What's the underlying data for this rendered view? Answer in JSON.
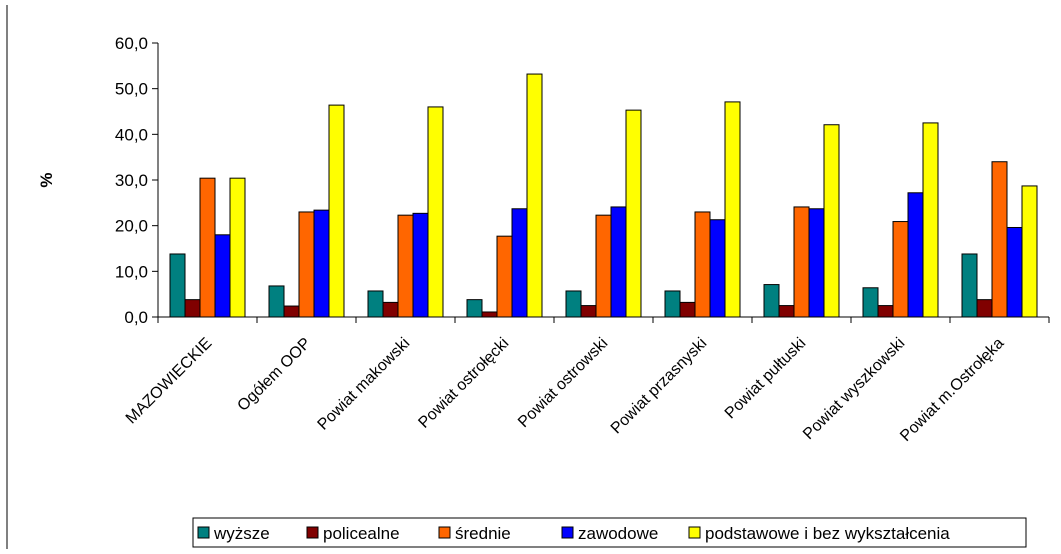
{
  "chart_data": {
    "type": "bar",
    "title": "",
    "xlabel": "",
    "ylabel": "%",
    "ylim": [
      0,
      60
    ],
    "ytick_step": 10,
    "ytick_labels": [
      "0,0",
      "10,0",
      "20,0",
      "30,0",
      "40,0",
      "50,0",
      "60,0"
    ],
    "grid": false,
    "legend_position": "bottom",
    "categories": [
      "MAZOWIECKIE",
      "Ogółem OOP",
      "Powiat makowski",
      "Powiat ostrołęcki",
      "Powiat ostrowski",
      "Powiat przasnyski",
      "Powiat pułtuski",
      "Powiat wyszkowski",
      "Powiat m.Ostrołęka"
    ],
    "series": [
      {
        "name": "wyższe",
        "color": "#008080",
        "values": [
          13.8,
          6.8,
          5.7,
          3.8,
          5.7,
          5.7,
          7.1,
          6.4,
          13.8
        ]
      },
      {
        "name": "policealne",
        "color": "#800000",
        "values": [
          3.8,
          2.4,
          3.2,
          1.1,
          2.5,
          3.2,
          2.5,
          2.5,
          3.8
        ]
      },
      {
        "name": "średnie",
        "color": "#FF6600",
        "values": [
          30.4,
          23.0,
          22.3,
          17.7,
          22.3,
          23.0,
          24.1,
          20.9,
          34.0
        ]
      },
      {
        "name": "zawodowe",
        "color": "#0000FF",
        "values": [
          18.0,
          23.4,
          22.7,
          23.7,
          24.1,
          21.3,
          23.7,
          27.2,
          19.6
        ]
      },
      {
        "name": "podstawowe i bez wykształcenia",
        "color": "#FFFF00",
        "values": [
          30.4,
          46.4,
          46.0,
          53.2,
          45.3,
          47.1,
          42.1,
          42.5,
          28.7
        ]
      }
    ]
  }
}
